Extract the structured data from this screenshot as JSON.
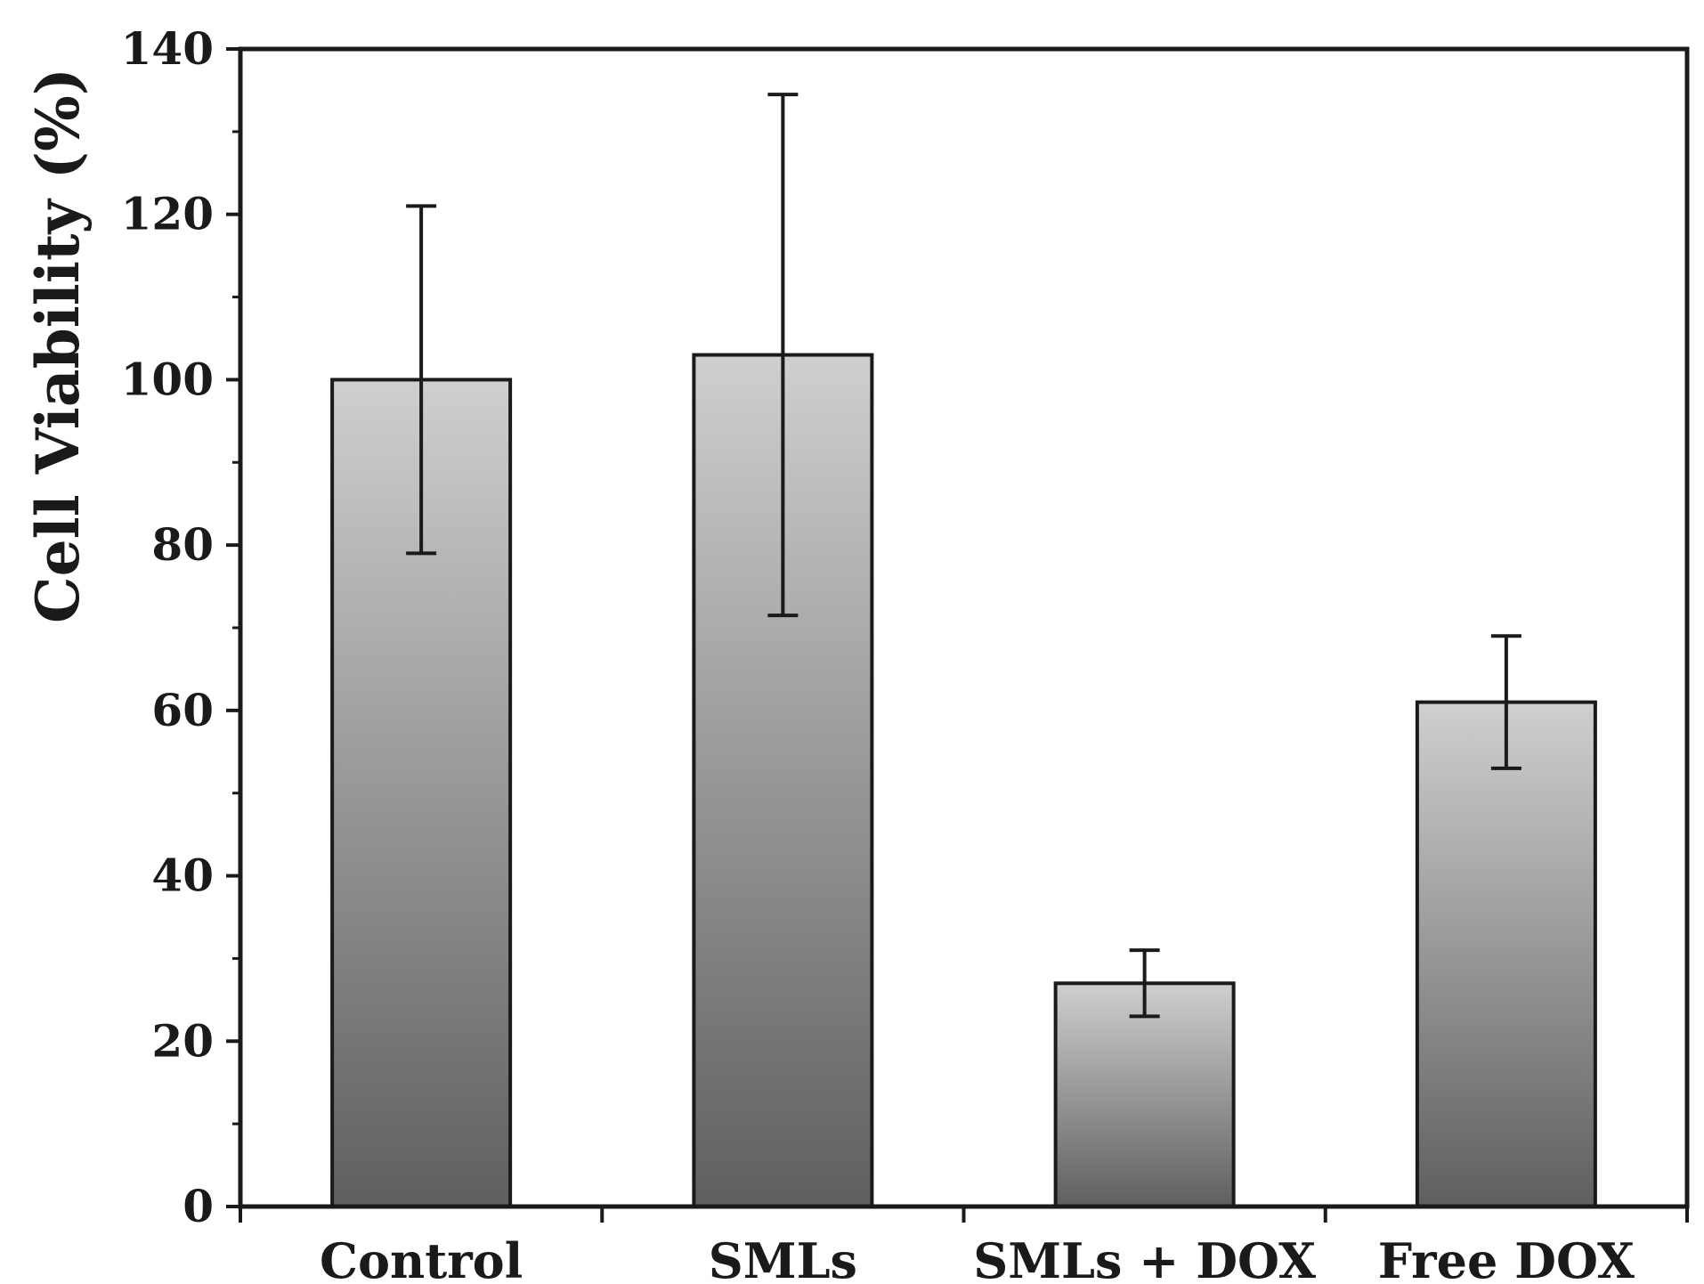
{
  "chart_data": {
    "type": "bar",
    "title": "",
    "xlabel": "",
    "ylabel": "Cell Viability (%)",
    "categories": [
      "Control",
      "SMLs",
      "SMLs + DOX",
      "Free DOX"
    ],
    "values": [
      100,
      103,
      27,
      61
    ],
    "error_bars": [
      {
        "upper": 121,
        "lower": 79
      },
      {
        "upper": 134.5,
        "lower": 71.5
      },
      {
        "upper": 31,
        "lower": 23
      },
      {
        "upper": 69,
        "lower": 53
      }
    ],
    "ylim": [
      0,
      140
    ],
    "yticks": [
      0,
      20,
      40,
      60,
      80,
      100,
      120,
      140
    ],
    "yticks_minor_step": 10,
    "grid": false,
    "legend": "none",
    "colors": {
      "bar_top": "#cfcfcf",
      "bar_bottom": "#5f5f5f",
      "axis": "#1a1a1a"
    }
  }
}
